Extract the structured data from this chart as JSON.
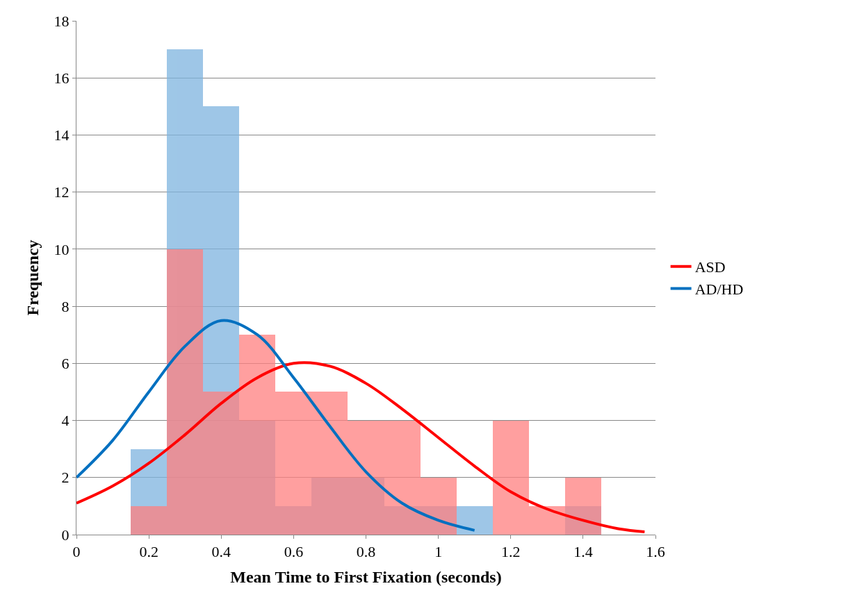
{
  "chart_data": {
    "type": "histogram",
    "xlabel": "Mean Time to First Fixation (seconds)",
    "ylabel": "Frequency",
    "bins": [
      0.15,
      0.25,
      0.35,
      0.45,
      0.55,
      0.65,
      0.75,
      0.85,
      0.95,
      1.05,
      1.15,
      1.25,
      1.35,
      1.45
    ],
    "series": [
      {
        "color": "#7eb4df",
        "values": [
          3,
          17,
          15,
          4,
          1,
          2,
          2,
          1,
          1,
          1,
          0,
          0,
          1
        ]
      },
      {
        "color": "#ff8080",
        "values": [
          1,
          10,
          5,
          7,
          5,
          5,
          4,
          4,
          2,
          0,
          4,
          1,
          2
        ]
      },
      {
        "type": "line",
        "name": "ASD",
        "color": "#ff0000",
        "x": [
          0,
          0.1,
          0.2,
          0.3,
          0.4,
          0.5,
          0.6,
          0.7,
          0.8,
          0.9,
          1.0,
          1.1,
          1.2,
          1.3,
          1.4,
          1.5,
          1.57
        ],
        "values": [
          1.1,
          1.7,
          2.5,
          3.5,
          4.6,
          5.5,
          6.0,
          5.9,
          5.3,
          4.4,
          3.4,
          2.4,
          1.5,
          0.9,
          0.5,
          0.2,
          0.1
        ]
      },
      {
        "type": "line",
        "name": "AD/HD",
        "color": "#0070c0",
        "x": [
          0,
          0.1,
          0.2,
          0.3,
          0.4,
          0.5,
          0.6,
          0.7,
          0.8,
          0.9,
          1.0,
          1.1
        ],
        "values": [
          2.0,
          3.3,
          5.0,
          6.6,
          7.5,
          7.0,
          5.5,
          3.8,
          2.2,
          1.1,
          0.5,
          0.15
        ]
      }
    ],
    "xlim": [
      0,
      1.6
    ],
    "xticks": [
      0,
      {
        "value": 0.2,
        "label": "0.2"
      },
      {
        "value": 0.4,
        "label": "0.4"
      },
      {
        "value": 0.6,
        "label": "0.6"
      },
      {
        "value": 0.8,
        "label": "0.8"
      },
      1,
      {
        "value": 1.2,
        "label": "1.2"
      },
      {
        "value": 1.4,
        "label": "1.4"
      },
      {
        "value": 1.6,
        "label": "1.6"
      }
    ],
    "ylim": [
      0,
      18
    ],
    "yticks": [
      0,
      2,
      4,
      6,
      8,
      10,
      12,
      14,
      16,
      18
    ],
    "grid": "y",
    "legend": "right",
    "marker": "none",
    "line_style": "solid"
  }
}
